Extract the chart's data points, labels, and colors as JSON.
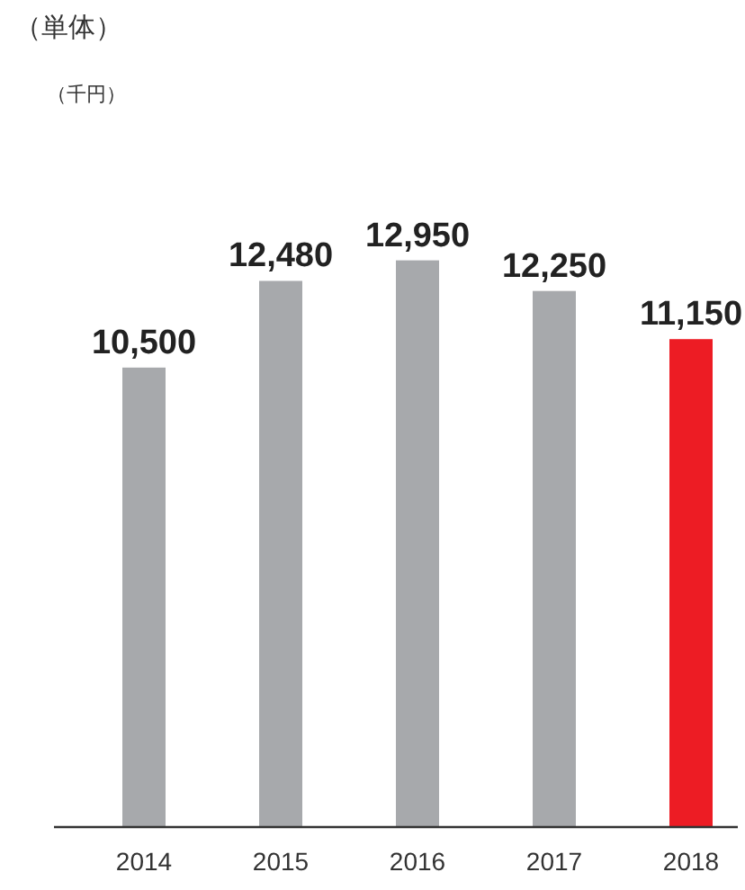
{
  "chart_data": {
    "type": "bar",
    "title": "（単体）",
    "annotations": [
      "（千円）"
    ],
    "categories": [
      "2014",
      "2015",
      "2016",
      "2017",
      "2018"
    ],
    "values": [
      10500,
      12480,
      12950,
      12250,
      11150
    ],
    "value_labels": [
      "10,500",
      "12,480",
      "12,950",
      "12,250",
      "11,150"
    ],
    "colors": [
      "#a7a9ac",
      "#a7a9ac",
      "#a7a9ac",
      "#a7a9ac",
      "#ed1c24"
    ],
    "tick_labels": "x"
  }
}
